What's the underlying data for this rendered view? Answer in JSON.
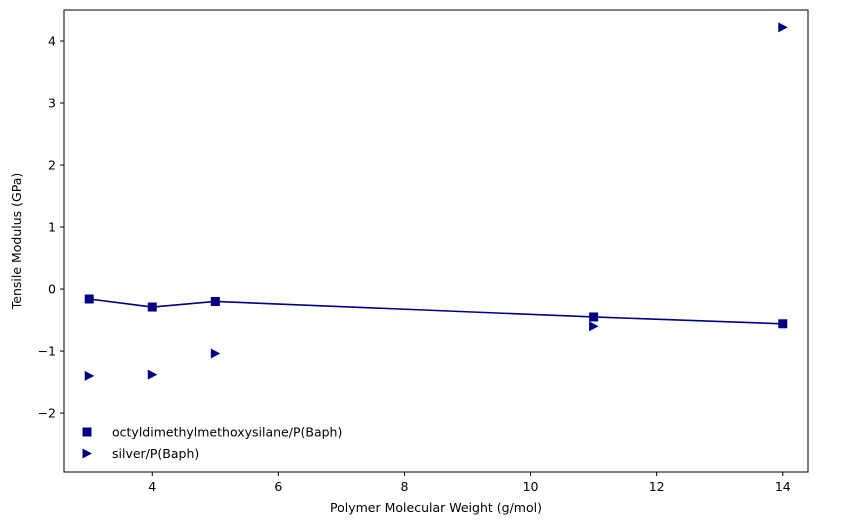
{
  "chart_data": {
    "type": "scatter",
    "title": "",
    "xlabel": "Polymer Molecular Weight (g/mol)",
    "ylabel": "Tensile Modulus (GPa)",
    "xlim": [
      2.6,
      14.4
    ],
    "ylim": [
      -2.95,
      4.5
    ],
    "xticks": [
      4,
      6,
      8,
      10,
      12,
      14
    ],
    "yticks": [
      -2,
      -1,
      0,
      1,
      2,
      3,
      4
    ],
    "grid": false,
    "legend_position": "lower-left",
    "series": [
      {
        "name": "octyldimethylmethoxysilane/P(Baph)",
        "marker": "square",
        "connected": true,
        "color": "#000080",
        "x": [
          3,
          4,
          5,
          11,
          14
        ],
        "y": [
          -0.16,
          -0.29,
          -0.2,
          -0.45,
          -0.56
        ]
      },
      {
        "name": "silver/P(Baph)",
        "marker": "triangle-right",
        "connected": false,
        "color": "#000080",
        "x": [
          3,
          4,
          5,
          11,
          14
        ],
        "y": [
          -1.4,
          -1.38,
          -1.04,
          -0.6,
          4.22
        ]
      }
    ]
  }
}
